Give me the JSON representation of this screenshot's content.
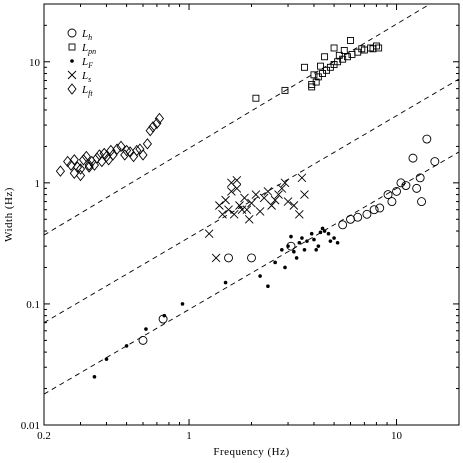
{
  "chart_data": {
    "type": "scatter",
    "xlabel": "Frequency (Hz)",
    "ylabel": "Width (Hz)",
    "xscale": "log",
    "yscale": "log",
    "xlim": [
      0.2,
      20
    ],
    "ylim": [
      0.01,
      30
    ],
    "xticks": [
      0.2,
      1,
      10
    ],
    "xtick_labels": [
      "0.2",
      "1",
      "10"
    ],
    "yticks": [
      0.01,
      0.1,
      1,
      10
    ],
    "ytick_labels": [
      "0.01",
      "0.1",
      "1",
      "10"
    ],
    "legend_position": "top-left",
    "grid": false,
    "series": [
      {
        "name": "L_h",
        "label_main": "L",
        "label_sub": "h",
        "marker": "circle",
        "points": [
          [
            0.6,
            0.05
          ],
          [
            0.75,
            0.075
          ],
          [
            1.55,
            0.24
          ],
          [
            2.0,
            0.24
          ],
          [
            3.1,
            0.3
          ],
          [
            5.5,
            0.45
          ],
          [
            6.0,
            0.5
          ],
          [
            6.5,
            0.52
          ],
          [
            7.2,
            0.55
          ],
          [
            7.8,
            0.6
          ],
          [
            8.3,
            0.62
          ],
          [
            9.1,
            0.8
          ],
          [
            10.0,
            0.85
          ],
          [
            10.5,
            1.0
          ],
          [
            11.1,
            0.95
          ],
          [
            12.0,
            1.6
          ],
          [
            9.5,
            0.7
          ],
          [
            13.2,
            0.7
          ],
          [
            14.0,
            2.3
          ],
          [
            15.3,
            1.5
          ],
          [
            13.0,
            1.1
          ],
          [
            12.5,
            0.9
          ]
        ]
      },
      {
        "name": "L_pn",
        "label_main": "L",
        "label_sub": "pn",
        "marker": "square",
        "points": [
          [
            2.1,
            5.0
          ],
          [
            2.9,
            5.8
          ],
          [
            3.6,
            9.0
          ],
          [
            3.9,
            6.2
          ],
          [
            4.1,
            6.8
          ],
          [
            4.2,
            7.5
          ],
          [
            4.4,
            8.0
          ],
          [
            4.6,
            8.5
          ],
          [
            4.8,
            9.0
          ],
          [
            5.0,
            9.5
          ],
          [
            5.2,
            10.0
          ],
          [
            5.5,
            10.5
          ],
          [
            5.8,
            11.0
          ],
          [
            6.1,
            11.5
          ],
          [
            6.5,
            12.0
          ],
          [
            7.0,
            12.5
          ],
          [
            7.5,
            13.0
          ],
          [
            8.0,
            13.5
          ],
          [
            4.5,
            11.0
          ],
          [
            5.0,
            13.0
          ],
          [
            6.0,
            15.0
          ],
          [
            4.3,
            9.2
          ],
          [
            4.0,
            7.8
          ],
          [
            3.9,
            6.5
          ],
          [
            5.3,
            11.3
          ],
          [
            5.6,
            12.4
          ],
          [
            6.8,
            12.8
          ],
          [
            7.7,
            12.8
          ],
          [
            8.2,
            13.0
          ]
        ]
      },
      {
        "name": "L_F",
        "label_main": "L",
        "label_sub": "F",
        "marker": "dot",
        "points": [
          [
            0.35,
            0.025
          ],
          [
            0.4,
            0.035
          ],
          [
            0.5,
            0.045
          ],
          [
            0.62,
            0.062
          ],
          [
            0.76,
            0.08
          ],
          [
            0.93,
            0.1
          ],
          [
            1.5,
            0.15
          ],
          [
            2.2,
            0.17
          ],
          [
            2.4,
            0.14
          ],
          [
            2.6,
            0.22
          ],
          [
            2.8,
            0.28
          ],
          [
            3.0,
            0.3
          ],
          [
            3.2,
            0.27
          ],
          [
            3.4,
            0.32
          ],
          [
            3.5,
            0.35
          ],
          [
            3.7,
            0.33
          ],
          [
            3.9,
            0.38
          ],
          [
            4.0,
            0.34
          ],
          [
            4.2,
            0.3
          ],
          [
            4.3,
            0.39
          ],
          [
            4.5,
            0.4
          ],
          [
            4.7,
            0.38
          ],
          [
            5.0,
            0.35
          ],
          [
            5.2,
            0.32
          ],
          [
            3.3,
            0.24
          ],
          [
            3.6,
            0.28
          ],
          [
            4.1,
            0.28
          ],
          [
            2.9,
            0.2
          ],
          [
            3.1,
            0.36
          ],
          [
            4.4,
            0.42
          ],
          [
            4.8,
            0.33
          ]
        ]
      },
      {
        "name": "L_s",
        "label_main": "L",
        "label_sub": "s",
        "marker": "cross",
        "points": [
          [
            1.25,
            0.38
          ],
          [
            1.35,
            0.24
          ],
          [
            1.4,
            0.65
          ],
          [
            1.45,
            0.55
          ],
          [
            1.5,
            0.72
          ],
          [
            1.55,
            0.6
          ],
          [
            1.6,
            0.85
          ],
          [
            1.65,
            0.55
          ],
          [
            1.7,
            0.9
          ],
          [
            1.75,
            0.65
          ],
          [
            1.8,
            0.6
          ],
          [
            1.85,
            0.75
          ],
          [
            1.9,
            0.6
          ],
          [
            1.95,
            0.5
          ],
          [
            2.0,
            0.68
          ],
          [
            2.1,
            0.8
          ],
          [
            2.2,
            0.58
          ],
          [
            2.3,
            0.75
          ],
          [
            2.5,
            0.65
          ],
          [
            2.6,
            0.72
          ],
          [
            2.7,
            0.8
          ],
          [
            2.8,
            0.9
          ],
          [
            3.0,
            0.7
          ],
          [
            3.2,
            0.65
          ],
          [
            3.4,
            0.55
          ],
          [
            3.6,
            0.8
          ],
          [
            1.6,
            1.0
          ],
          [
            1.7,
            1.05
          ],
          [
            2.4,
            0.85
          ],
          [
            2.9,
            1.0
          ],
          [
            3.5,
            1.1
          ]
        ]
      },
      {
        "name": "L_ft",
        "label_main": "L",
        "label_sub": "ft",
        "marker": "diamond",
        "points": [
          [
            0.24,
            1.25
          ],
          [
            0.26,
            1.5
          ],
          [
            0.27,
            1.4
          ],
          [
            0.28,
            1.55
          ],
          [
            0.29,
            1.35
          ],
          [
            0.3,
            1.3
          ],
          [
            0.31,
            1.55
          ],
          [
            0.32,
            1.65
          ],
          [
            0.33,
            1.4
          ],
          [
            0.34,
            1.5
          ],
          [
            0.35,
            1.4
          ],
          [
            0.36,
            1.6
          ],
          [
            0.37,
            1.7
          ],
          [
            0.38,
            1.5
          ],
          [
            0.39,
            1.75
          ],
          [
            0.4,
            1.65
          ],
          [
            0.41,
            1.55
          ],
          [
            0.42,
            1.85
          ],
          [
            0.43,
            1.7
          ],
          [
            0.45,
            1.9
          ],
          [
            0.47,
            2.0
          ],
          [
            0.49,
            1.7
          ],
          [
            0.5,
            1.85
          ],
          [
            0.52,
            1.8
          ],
          [
            0.54,
            1.65
          ],
          [
            0.56,
            1.85
          ],
          [
            0.58,
            1.9
          ],
          [
            0.6,
            1.7
          ],
          [
            0.63,
            2.1
          ],
          [
            0.65,
            2.7
          ],
          [
            0.67,
            2.9
          ],
          [
            0.7,
            3.1
          ],
          [
            0.72,
            3.4
          ],
          [
            0.28,
            1.2
          ],
          [
            0.3,
            1.15
          ],
          [
            0.33,
            1.35
          ]
        ]
      }
    ],
    "reference_lines": [
      {
        "style": "dashed",
        "points": [
          [
            0.2,
            0.37
          ],
          [
            14.5,
            30
          ]
        ]
      },
      {
        "style": "dashed",
        "points": [
          [
            0.2,
            0.07
          ],
          [
            20,
            7.2
          ]
        ]
      },
      {
        "style": "dashed",
        "points": [
          [
            0.2,
            0.018
          ],
          [
            20,
            1.8
          ]
        ]
      }
    ]
  }
}
